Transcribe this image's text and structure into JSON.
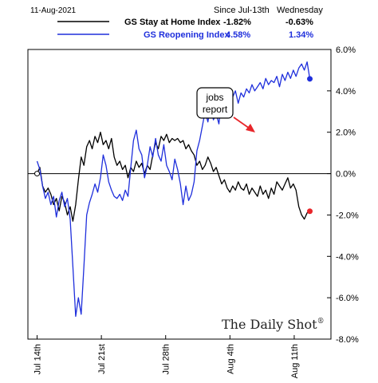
{
  "chart_data": {
    "type": "line",
    "date_stamp": "11-Aug-2021",
    "legend_headers": {
      "since": "Since Jul-13th",
      "day": "Wednesday"
    },
    "series": [
      {
        "name": "GS Stay at Home Index",
        "color": "#000000",
        "since_value": "-1.82%",
        "day_value": "-0.63%",
        "x": [
          0,
          0.3,
          0.6,
          0.9,
          1.2,
          1.5,
          1.8,
          2.1,
          2.4,
          2.7,
          3,
          3.3,
          3.6,
          3.9,
          4.2,
          4.5,
          4.8,
          5.1,
          5.4,
          5.7,
          6,
          6.3,
          6.6,
          6.9,
          7.2,
          7.5,
          7.8,
          8.1,
          8.4,
          8.7,
          9,
          9.3,
          9.6,
          9.9,
          10.2,
          10.5,
          10.8,
          11.1,
          11.4,
          11.7,
          12,
          12.3,
          12.6,
          12.9,
          13.2,
          13.5,
          13.8,
          14.1,
          14.4,
          14.7,
          15,
          15.3,
          15.6,
          15.9,
          16.2,
          16.5,
          16.8,
          17.1,
          17.4,
          17.7,
          18,
          18.3,
          18.6,
          18.9,
          19.2,
          19.5,
          19.8,
          20.1,
          20.4,
          20.7,
          21,
          21.3,
          21.6,
          21.9,
          22.2,
          22.5,
          22.8,
          23.1,
          23.4,
          23.7,
          24,
          24.3,
          24.6,
          24.9,
          25.2,
          25.5,
          25.8,
          26.1,
          26.4,
          26.7,
          27,
          27.3,
          27.6,
          27.9,
          28.2,
          28.5,
          28.8,
          29.1,
          29.4,
          29.7
        ],
        "values": [
          0,
          0.3,
          -0.6,
          -0.9,
          -0.7,
          -1.0,
          -1.5,
          -1.2,
          -1.8,
          -1.1,
          -1.4,
          -2.0,
          -1.6,
          -2.3,
          -1.5,
          -0.3,
          0.8,
          0.4,
          1.3,
          1.6,
          1.2,
          1.8,
          1.5,
          2.0,
          1.4,
          1.6,
          1.2,
          1.7,
          0.8,
          0.4,
          0.6,
          0.2,
          0.4,
          -0.2,
          0.3,
          0.1,
          0.6,
          0.3,
          0.5,
          0.0,
          0.4,
          0.2,
          0.9,
          1.5,
          1.2,
          1.8,
          1.6,
          1.9,
          1.5,
          1.7,
          1.6,
          1.7,
          1.5,
          1.6,
          1.2,
          1.4,
          1.1,
          0.9,
          0.4,
          0.6,
          0.2,
          0.4,
          0.8,
          0.5,
          0.1,
          0.3,
          -0.1,
          -0.5,
          -0.3,
          -0.7,
          -0.9,
          -0.6,
          -0.8,
          -0.4,
          -0.7,
          -0.8,
          -0.5,
          -1.0,
          -0.7,
          -0.9,
          -1.1,
          -0.6,
          -1.0,
          -0.8,
          -1.2,
          -0.7,
          -1.0,
          -0.4,
          -0.6,
          -0.8,
          -0.5,
          -0.2,
          -0.7,
          -0.5,
          -0.8,
          -1.6,
          -2.0,
          -2.2,
          -1.9,
          -1.82
        ],
        "end_marker": true
      },
      {
        "name": "GS Reopening Index",
        "color": "#1f2fdc",
        "since_value": "4.58%",
        "day_value": "1.34%",
        "x": [
          0,
          0.3,
          0.6,
          0.9,
          1.2,
          1.5,
          1.8,
          2.1,
          2.4,
          2.7,
          3,
          3.3,
          3.6,
          3.9,
          4.2,
          4.5,
          4.8,
          5.1,
          5.4,
          5.7,
          6,
          6.3,
          6.6,
          6.9,
          7.2,
          7.5,
          7.8,
          8.1,
          8.4,
          8.7,
          9,
          9.3,
          9.6,
          9.9,
          10.2,
          10.5,
          10.8,
          11.1,
          11.4,
          11.7,
          12,
          12.3,
          12.6,
          12.9,
          13.2,
          13.5,
          13.8,
          14.1,
          14.4,
          14.7,
          15,
          15.3,
          15.6,
          15.9,
          16.2,
          16.5,
          16.8,
          17.1,
          17.4,
          17.7,
          18,
          18.3,
          18.6,
          18.9,
          19.2,
          19.5,
          19.8,
          20.1,
          20.4,
          20.7,
          21,
          21.3,
          21.6,
          21.9,
          22.2,
          22.5,
          22.8,
          23.1,
          23.4,
          23.7,
          24,
          24.3,
          24.6,
          24.9,
          25.2,
          25.5,
          25.8,
          26.1,
          26.4,
          26.7,
          27,
          27.3,
          27.6,
          27.9,
          28.2,
          28.5,
          28.8,
          29.1,
          29.4,
          29.7
        ],
        "values": [
          0.6,
          0.2,
          -0.6,
          -1.2,
          -0.9,
          -1.5,
          -1.1,
          -2.1,
          -1.3,
          -0.9,
          -1.6,
          -1.2,
          -2.2,
          -4.5,
          -6.9,
          -6.0,
          -6.8,
          -4.5,
          -2.0,
          -1.4,
          -1.0,
          -0.5,
          -0.9,
          -0.2,
          0.9,
          0.4,
          -0.4,
          -0.8,
          -1.1,
          -1.2,
          -1.0,
          -1.3,
          -0.8,
          -1.1,
          0.3,
          1.6,
          2.1,
          1.2,
          0.9,
          -0.2,
          0.4,
          1.3,
          0.8,
          1.7,
          0.9,
          0.6,
          1.4,
          0.4,
          0.1,
          -0.3,
          0.7,
          0.2,
          -0.5,
          -1.5,
          -0.6,
          -1.3,
          -1.0,
          -0.4,
          1.1,
          1.6,
          2.3,
          3.0,
          2.5,
          3.3,
          2.6,
          2.9,
          2.4,
          3.7,
          3.9,
          2.9,
          3.5,
          3.7,
          4.0,
          3.4,
          3.9,
          3.7,
          4.1,
          3.9,
          4.3,
          4.0,
          4.2,
          4.4,
          4.1,
          4.6,
          4.3,
          4.5,
          4.4,
          4.7,
          4.2,
          4.8,
          4.5,
          4.9,
          4.6,
          5.0,
          4.7,
          5.1,
          5.3,
          5.0,
          5.4,
          4.58
        ],
        "end_marker": true
      }
    ],
    "x_ticks": [
      {
        "x": 0,
        "label": "Jul 14th"
      },
      {
        "x": 7,
        "label": "Jul 21st"
      },
      {
        "x": 14,
        "label": "Jul 28th"
      },
      {
        "x": 21,
        "label": "Aug 4th"
      },
      {
        "x": 28,
        "label": "Aug 11th"
      }
    ],
    "xlim": [
      -1,
      32
    ],
    "y_ticks": [
      6,
      4,
      2,
      0,
      -2,
      -4,
      -6,
      -8
    ],
    "y_tick_labels": [
      "6.0%",
      "4.0%",
      "2.0%",
      "0.0%",
      "-2.0%",
      "-4.0%",
      "-6.0%",
      "-8.0%"
    ],
    "ylim": [
      -8,
      6
    ],
    "zero_line": true,
    "grid": false,
    "annotation": {
      "text_line1": "jobs",
      "text_line2": "report",
      "arrow_color": "#e8262a"
    },
    "watermark": "The Daily Shot",
    "watermark_mark": "®"
  }
}
